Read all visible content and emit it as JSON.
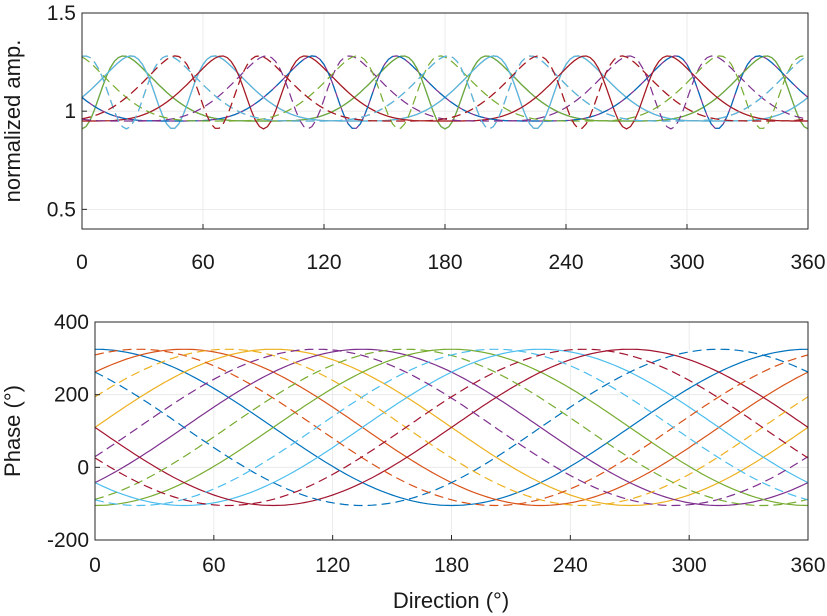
{
  "chart_data": [
    {
      "type": "line",
      "ylabel": "normalized amp.",
      "xlabel": "",
      "xlim": [
        0,
        360
      ],
      "ylim": [
        0.4,
        1.5
      ],
      "xticks": [
        "0",
        "60",
        "120",
        "180",
        "240",
        "300",
        "360"
      ],
      "yticks": [
        "0.5",
        "1",
        "1.5"
      ],
      "grid": true,
      "series_note": "",
      "series": [
        {
          "color": "#0072BD",
          "dash": false,
          "shape": "lobe",
          "center": 0
        },
        {
          "color": "#D95319",
          "dash": false,
          "shape": "lobe",
          "center": 45
        },
        {
          "color": "#EDB120",
          "dash": false,
          "shape": "lobe",
          "center": 90
        },
        {
          "color": "#7E2F8E",
          "dash": false,
          "shape": "lobe",
          "center": 135
        },
        {
          "color": "#77AC30",
          "dash": false,
          "shape": "lobe",
          "center": 180
        },
        {
          "color": "#4DBEEE",
          "dash": false,
          "shape": "lobe",
          "center": 225
        },
        {
          "color": "#A2142F",
          "dash": false,
          "shape": "lobe",
          "center": 270
        },
        {
          "color": "#0072BD",
          "dash": true,
          "shape": "lobe",
          "center": 315
        },
        {
          "color": "#D95319",
          "dash": true,
          "shape": "lobe",
          "center": 22
        },
        {
          "color": "#EDB120",
          "dash": true,
          "shape": "lobe",
          "center": 67
        },
        {
          "color": "#7E2F8E",
          "dash": true,
          "shape": "lobe",
          "center": 112
        },
        {
          "color": "#77AC30",
          "dash": true,
          "shape": "lobe",
          "center": 157
        },
        {
          "color": "#4DBEEE",
          "dash": true,
          "shape": "lobe",
          "center": 202
        },
        {
          "color": "#A2142F",
          "dash": true,
          "shape": "lobe",
          "center": 247
        }
      ]
    },
    {
      "type": "line",
      "ylabel": "Phase (°)",
      "xlabel": "Direction (°)",
      "xlim": [
        0,
        360
      ],
      "ylim": [
        -200,
        400
      ],
      "xticks": [
        "0",
        "60",
        "120",
        "180",
        "240",
        "300",
        "360"
      ],
      "yticks": [
        "-200",
        "0",
        "200",
        "400"
      ],
      "grid": true,
      "series": [
        {
          "color": "#0072BD",
          "dash": false,
          "offset": 0
        },
        {
          "color": "#D95319",
          "dash": false,
          "offset": 45
        },
        {
          "color": "#EDB120",
          "dash": false,
          "offset": 90
        },
        {
          "color": "#7E2F8E",
          "dash": false,
          "offset": 135
        },
        {
          "color": "#77AC30",
          "dash": false,
          "offset": 180
        },
        {
          "color": "#4DBEEE",
          "dash": false,
          "offset": 225
        },
        {
          "color": "#A2142F",
          "dash": false,
          "offset": 270
        },
        {
          "color": "#0072BD",
          "dash": true,
          "offset": 315
        },
        {
          "color": "#D95319",
          "dash": true,
          "offset": 22
        },
        {
          "color": "#EDB120",
          "dash": true,
          "offset": 67
        },
        {
          "color": "#7E2F8E",
          "dash": true,
          "offset": 112
        },
        {
          "color": "#77AC30",
          "dash": true,
          "offset": 157
        },
        {
          "color": "#4DBEEE",
          "dash": true,
          "offset": 202
        },
        {
          "color": "#A2142F",
          "dash": true,
          "offset": 247
        }
      ]
    }
  ]
}
